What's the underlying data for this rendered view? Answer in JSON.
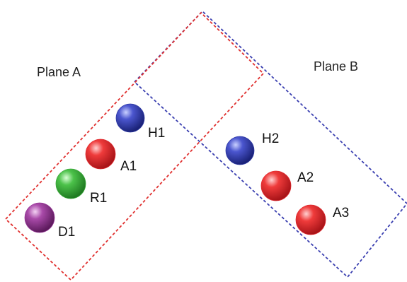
{
  "planes": [
    {
      "key": "A",
      "label": "Plane A",
      "color": "#e0302f"
    },
    {
      "key": "B",
      "label": "Plane B",
      "color": "#3a3fb0"
    }
  ],
  "atoms": [
    {
      "key": "H1",
      "label": "H1",
      "plane": "A",
      "color": "blue"
    },
    {
      "key": "A1",
      "label": "A1",
      "plane": "A",
      "color": "red"
    },
    {
      "key": "R1",
      "label": "R1",
      "plane": "A",
      "color": "green"
    },
    {
      "key": "D1",
      "label": "D1",
      "plane": "A",
      "color": "purple"
    },
    {
      "key": "H2",
      "label": "H2",
      "plane": "B",
      "color": "blue"
    },
    {
      "key": "A2",
      "label": "A2",
      "plane": "B",
      "color": "red"
    },
    {
      "key": "A3",
      "label": "A3",
      "plane": "B",
      "color": "red"
    }
  ],
  "colors": {
    "blue": "#2f3aa6",
    "red": "#e12a2f",
    "green": "#3aa83a",
    "purple": "#9a3a9a"
  }
}
